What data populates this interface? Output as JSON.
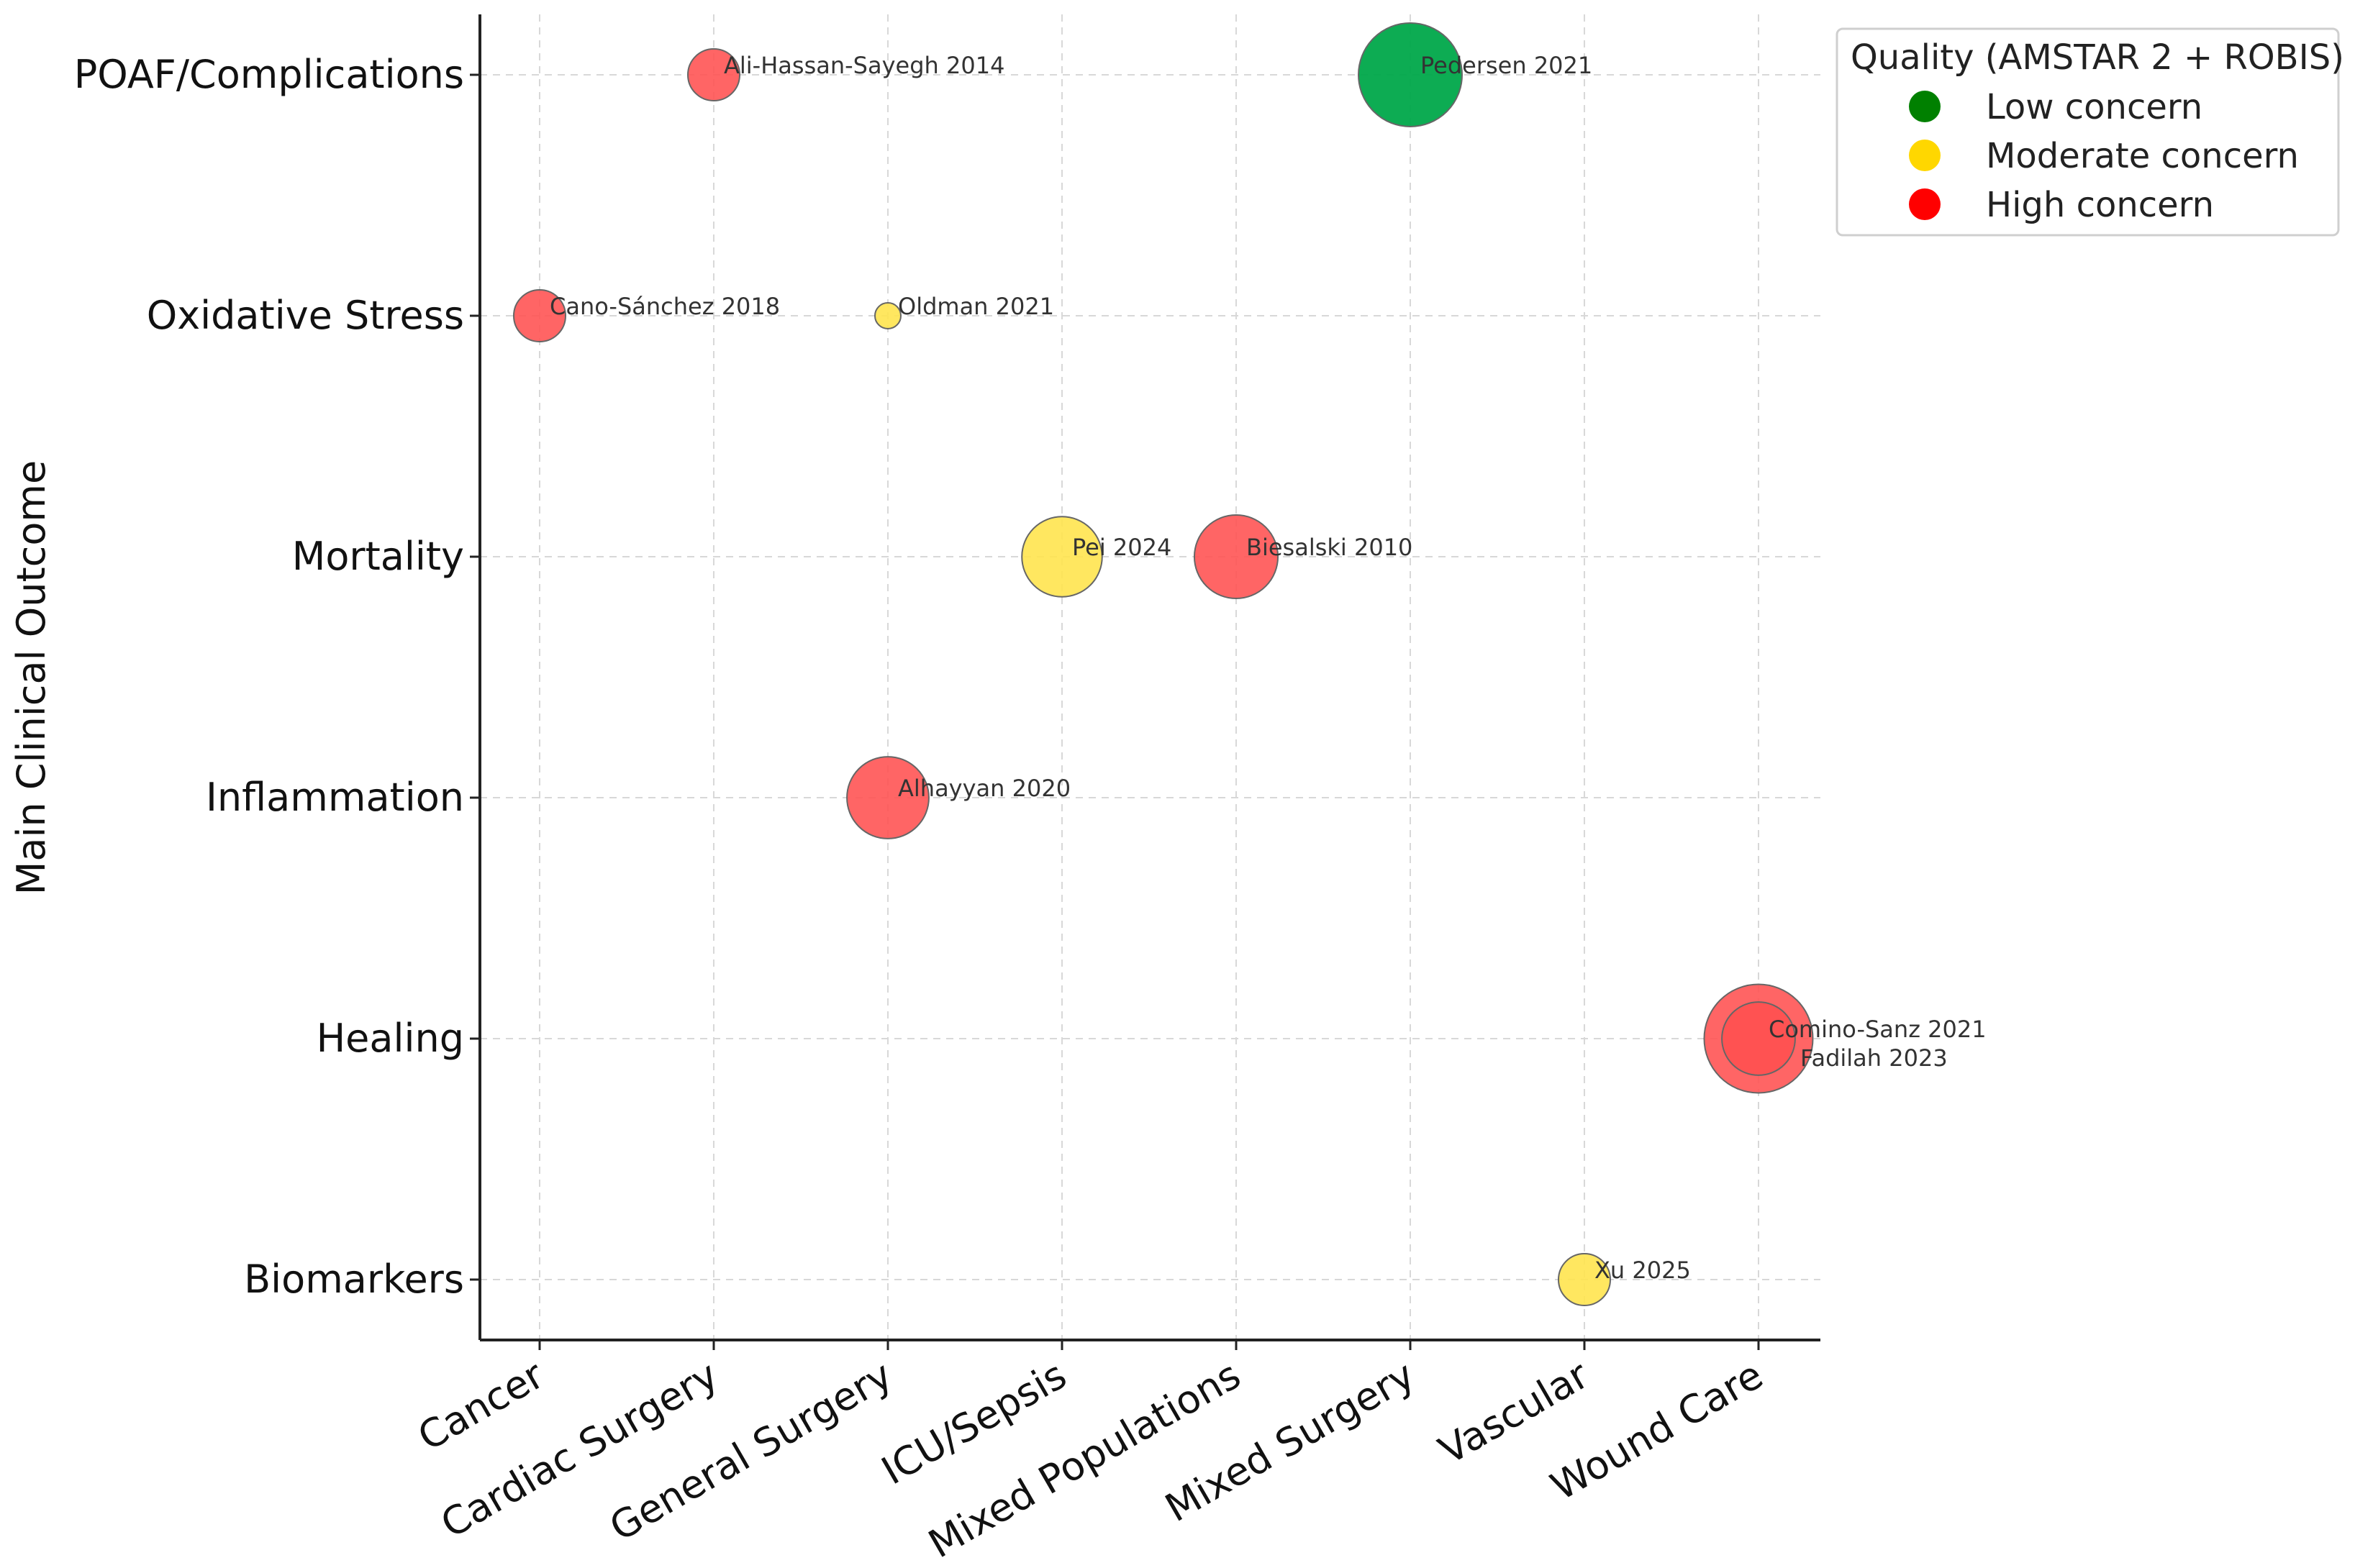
{
  "chart_data": {
    "type": "scatter",
    "title": "",
    "xlabel": "",
    "ylabel": "Main Clinical Outcome",
    "grid": true,
    "x_categories": [
      "Cancer",
      "Cardiac Surgery",
      "General Surgery",
      "ICU/Sepsis",
      "Mixed Populations",
      "Mixed Surgery",
      "Vascular",
      "Wound Care"
    ],
    "y_categories": [
      "Biomarkers",
      "Healing",
      "Inflammation",
      "Mortality",
      "Oxidative Stress",
      "POAF/Complications"
    ],
    "legend": {
      "title": "Quality (AMSTAR 2 + ROBIS)",
      "placement": "top-right-outside",
      "entries": [
        {
          "label": "Low concern",
          "quality": "Low",
          "color": "#008000"
        },
        {
          "label": "Moderate concern",
          "quality": "Moderate",
          "color": "#FFD700"
        },
        {
          "label": "High concern",
          "quality": "High",
          "color": "#FF0000"
        }
      ]
    },
    "points": [
      {
        "label": "Ali-Hassan-Sayegh 2014",
        "x": "Cardiac Surgery",
        "y": "POAF/Complications",
        "size": 1.0,
        "quality": "High"
      },
      {
        "label": "Pedersen 2021",
        "x": "Mixed Surgery",
        "y": "POAF/Complications",
        "size": 4.0,
        "quality": "Low"
      },
      {
        "label": "Cano-Sánchez 2018",
        "x": "Cancer",
        "y": "Oxidative Stress",
        "size": 1.0,
        "quality": "High"
      },
      {
        "label": "Oldman 2021",
        "x": "General Surgery",
        "y": "Oxidative Stress",
        "size": 0.25,
        "quality": "Moderate"
      },
      {
        "label": "Pei 2024",
        "x": "ICU/Sepsis",
        "y": "Mortality",
        "size": 2.4,
        "quality": "Moderate"
      },
      {
        "label": "Biesalski 2010",
        "x": "Mixed Populations",
        "y": "Mortality",
        "size": 2.6,
        "quality": "High"
      },
      {
        "label": "Alhayyan 2020",
        "x": "General Surgery",
        "y": "Inflammation",
        "size": 2.5,
        "quality": "High"
      },
      {
        "label": "Comino-Sanz 2021",
        "x": "Wound Care",
        "y": "Healing",
        "size": 4.4,
        "quality": "High"
      },
      {
        "label": "Fadilah 2023",
        "x": "Wound Care",
        "y": "Healing",
        "size": 2.0,
        "quality": "High"
      },
      {
        "label": "Xu 2025",
        "x": "Vascular",
        "y": "Biomarkers",
        "size": 1.0,
        "quality": "Moderate"
      }
    ]
  }
}
